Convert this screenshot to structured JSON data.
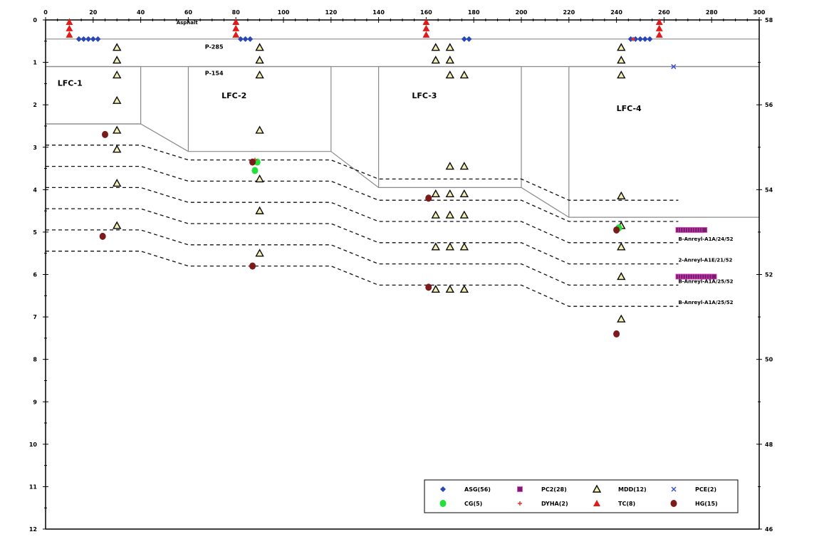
{
  "chart_data": {
    "type": "scatter",
    "title": "",
    "xlabel": "",
    "ylabel": "",
    "xlim": [
      0,
      300
    ],
    "ylim": [
      12,
      0
    ],
    "y2lim": [
      46,
      58
    ],
    "x_ticks": [
      "0",
      "20",
      "40",
      "60",
      "80",
      "100",
      "120",
      "140",
      "160",
      "180",
      "200",
      "220",
      "240",
      "260",
      "280",
      "300"
    ],
    "y_ticks": [
      "0",
      "1",
      "2",
      "3",
      "4",
      "5",
      "6",
      "7",
      "8",
      "9",
      "10",
      "11",
      "12"
    ],
    "y2_ticks": [
      "46",
      "48",
      "50",
      "52",
      "54",
      "56",
      "58"
    ],
    "grid": false,
    "legend_position": "bottom-right",
    "surface_line_depth": 0.45,
    "fill_bottom_line": [
      [
        0,
        1.1
      ],
      [
        300,
        1.1
      ]
    ],
    "layer_lines": [
      [
        [
          0,
          2.9
        ],
        [
          40,
          2.9
        ],
        [
          60,
          3.05
        ],
        [
          120,
          3.05
        ],
        [
          140,
          3.4
        ],
        [
          200,
          3.4
        ],
        [
          220,
          3.75
        ],
        [
          300,
          3.75
        ]
      ],
      [
        [
          0,
          3.4
        ],
        [
          40,
          3.4
        ],
        [
          60,
          3.55
        ],
        [
          120,
          3.55
        ],
        [
          140,
          3.9
        ],
        [
          200,
          3.9
        ],
        [
          220,
          4.25
        ],
        [
          300,
          4.25
        ]
      ],
      [
        [
          0,
          3.9
        ],
        [
          40,
          3.9
        ],
        [
          60,
          4.05
        ],
        [
          120,
          4.05
        ],
        [
          140,
          4.4
        ],
        [
          200,
          4.4
        ],
        [
          220,
          4.75
        ],
        [
          300,
          4.75
        ]
      ],
      [
        [
          0,
          4.4
        ],
        [
          40,
          4.4
        ],
        [
          60,
          4.55
        ],
        [
          120,
          4.55
        ],
        [
          140,
          4.9
        ],
        [
          200,
          4.9
        ],
        [
          220,
          5.25
        ],
        [
          300,
          5.25
        ]
      ],
      [
        [
          0,
          4.95
        ],
        [
          40,
          4.95
        ],
        [
          60,
          5.1
        ],
        [
          120,
          5.1
        ],
        [
          140,
          5.45
        ],
        [
          200,
          5.45
        ],
        [
          220,
          5.8
        ],
        [
          300,
          5.8
        ]
      ],
      [
        [
          0,
          5.5
        ],
        [
          40,
          5.5
        ],
        [
          60,
          5.65
        ],
        [
          120,
          5.65
        ],
        [
          140,
          6.0
        ],
        [
          200,
          6.0
        ],
        [
          220,
          6.35
        ],
        [
          300,
          6.35
        ]
      ],
      [
        [
          0,
          6.05
        ],
        [
          40,
          6.05
        ],
        [
          60,
          6.2
        ],
        [
          120,
          6.2
        ],
        [
          140,
          6.55
        ],
        [
          200,
          6.55
        ],
        [
          220,
          6.9
        ],
        [
          300,
          6.9
        ]
      ]
    ],
    "dashed_lines": [
      [
        [
          0,
          2.95
        ],
        [
          40,
          2.95
        ],
        [
          60,
          3.3
        ],
        [
          120,
          3.3
        ],
        [
          140,
          3.75
        ],
        [
          200,
          3.75
        ],
        [
          220,
          4.25
        ],
        [
          266,
          4.25
        ]
      ],
      [
        [
          0,
          3.45
        ],
        [
          40,
          3.45
        ],
        [
          60,
          3.8
        ],
        [
          120,
          3.8
        ],
        [
          140,
          4.25
        ],
        [
          200,
          4.25
        ],
        [
          220,
          4.75
        ],
        [
          266,
          4.75
        ]
      ],
      [
        [
          0,
          3.95
        ],
        [
          40,
          3.95
        ],
        [
          60,
          4.3
        ],
        [
          120,
          4.3
        ],
        [
          140,
          4.75
        ],
        [
          200,
          4.75
        ],
        [
          220,
          5.25
        ],
        [
          266,
          5.25
        ]
      ],
      [
        [
          0,
          4.45
        ],
        [
          40,
          4.45
        ],
        [
          60,
          4.8
        ],
        [
          120,
          4.8
        ],
        [
          140,
          5.25
        ],
        [
          200,
          5.25
        ],
        [
          220,
          5.75
        ],
        [
          266,
          5.75
        ]
      ],
      [
        [
          0,
          4.95
        ],
        [
          40,
          4.95
        ],
        [
          60,
          5.3
        ],
        [
          120,
          5.3
        ],
        [
          140,
          5.75
        ],
        [
          200,
          5.75
        ],
        [
          220,
          6.25
        ],
        [
          266,
          6.25
        ]
      ],
      [
        [
          0,
          5.45
        ],
        [
          40,
          5.45
        ],
        [
          60,
          5.8
        ],
        [
          120,
          5.8
        ],
        [
          140,
          6.25
        ],
        [
          200,
          6.25
        ],
        [
          220,
          6.75
        ],
        [
          266,
          6.75
        ]
      ]
    ],
    "lfc_boxes": [
      {
        "label": "LFC-1",
        "points": [
          [
            0,
            1.1
          ],
          [
            40,
            1.1
          ],
          [
            40,
            2.45
          ],
          [
            0,
            2.45
          ]
        ],
        "label_at": [
          5,
          1.55
        ]
      },
      {
        "label": "LFC-2",
        "points": [
          [
            60,
            1.1
          ],
          [
            120,
            1.1
          ],
          [
            120,
            3.1
          ],
          [
            60,
            3.1
          ]
        ],
        "label_at": [
          74,
          1.85
        ]
      },
      {
        "label": "LFC-3",
        "points": [
          [
            140,
            1.1
          ],
          [
            200,
            1.1
          ],
          [
            200,
            3.95
          ],
          [
            140,
            3.95
          ]
        ],
        "label_at": [
          154,
          1.85
        ]
      },
      {
        "label": "LFC-4",
        "points": [
          [
            220,
            1.1
          ],
          [
            300,
            1.1
          ],
          [
            300,
            4.65
          ],
          [
            220,
            4.65
          ]
        ],
        "label_at": [
          240,
          2.15
        ]
      }
    ],
    "text_annotations": [
      {
        "text": "Asphalt",
        "x": 55,
        "y": 0.1,
        "size": 7
      },
      {
        "text": "P-285",
        "x": 67,
        "y": 0.68,
        "size": 8
      },
      {
        "text": "P-154",
        "x": 67,
        "y": 1.3,
        "size": 8
      },
      {
        "text": "B-Anreyl-A1A/24/52",
        "x": 266,
        "y": 5.2,
        "size": 7
      },
      {
        "text": "2-Anreyl-A1E/21/52",
        "x": 266,
        "y": 5.7,
        "size": 7
      },
      {
        "text": "B-Anreyl-A1A/25/52",
        "x": 266,
        "y": 6.2,
        "size": 7
      },
      {
        "text": "B-Anreyl-A1A/25/52",
        "x": 266,
        "y": 6.7,
        "size": 7
      }
    ],
    "legend": [
      {
        "label": "ASG(56)",
        "marker": "diamond",
        "color": "#2a46b5"
      },
      {
        "label": "PC2(28)",
        "marker": "square",
        "color": "#7a1f67"
      },
      {
        "label": "MDD(12)",
        "marker": "triangle-open",
        "color": "#0a0a0a"
      },
      {
        "label": "PCE(2)",
        "marker": "x",
        "color": "#3a4fd8"
      },
      {
        "label": "CG(5)",
        "marker": "circle",
        "color": "#21e03a"
      },
      {
        "label": "DYHA(2)",
        "marker": "plus",
        "color": "#e6322b"
      },
      {
        "label": "TC(8)",
        "marker": "triangle-filled",
        "color": "#e21a1a"
      },
      {
        "label": "HG(15)",
        "marker": "circle",
        "color": "#7d1b1b"
      }
    ],
    "series": [
      {
        "name": "ASG(56)",
        "marker": "diamond",
        "color": "#2a46b5",
        "points": [
          [
            14,
            0.45
          ],
          [
            16,
            0.45
          ],
          [
            18,
            0.45
          ],
          [
            20,
            0.45
          ],
          [
            22,
            0.45
          ],
          [
            82,
            0.45
          ],
          [
            84,
            0.45
          ],
          [
            86,
            0.45
          ],
          [
            176,
            0.45
          ],
          [
            178,
            0.45
          ],
          [
            246,
            0.45
          ],
          [
            248,
            0.45
          ],
          [
            250,
            0.45
          ],
          [
            252,
            0.45
          ],
          [
            254,
            0.45
          ]
        ]
      },
      {
        "name": "PC2(28)",
        "marker": "square",
        "color": "#7a1f67",
        "points": [
          [
            266,
            4.95
          ],
          [
            267,
            4.95
          ],
          [
            268,
            4.95
          ],
          [
            269,
            4.95
          ],
          [
            270,
            4.95
          ],
          [
            271,
            4.95
          ],
          [
            272,
            4.95
          ],
          [
            273,
            4.95
          ],
          [
            274,
            4.95
          ],
          [
            275,
            4.95
          ],
          [
            276,
            4.95
          ],
          [
            277,
            4.95
          ],
          [
            266,
            6.05
          ],
          [
            267,
            6.05
          ],
          [
            268,
            6.05
          ],
          [
            269,
            6.05
          ],
          [
            270,
            6.05
          ],
          [
            271,
            6.05
          ],
          [
            272,
            6.05
          ],
          [
            273,
            6.05
          ],
          [
            274,
            6.05
          ],
          [
            275,
            6.05
          ],
          [
            276,
            6.05
          ],
          [
            277,
            6.05
          ],
          [
            278,
            6.05
          ],
          [
            279,
            6.05
          ],
          [
            280,
            6.05
          ],
          [
            281,
            6.05
          ]
        ]
      },
      {
        "name": "MDD(12)",
        "marker": "triangle-open",
        "color": "#0a0a0a",
        "points": [
          [
            30,
            0.65
          ],
          [
            30,
            0.95
          ],
          [
            30,
            1.3
          ],
          [
            30,
            1.9
          ],
          [
            30,
            2.6
          ],
          [
            30,
            3.05
          ],
          [
            30,
            3.85
          ],
          [
            30,
            4.85
          ],
          [
            90,
            0.65
          ],
          [
            90,
            0.95
          ],
          [
            90,
            1.3
          ],
          [
            90,
            2.6
          ],
          [
            90,
            3.75
          ],
          [
            90,
            4.5
          ],
          [
            90,
            5.5
          ],
          [
            164,
            0.65
          ],
          [
            170,
            0.65
          ],
          [
            164,
            0.95
          ],
          [
            170,
            0.95
          ],
          [
            170,
            1.3
          ],
          [
            176,
            1.3
          ],
          [
            170,
            3.45
          ],
          [
            176,
            3.45
          ],
          [
            164,
            4.1
          ],
          [
            170,
            4.1
          ],
          [
            176,
            4.1
          ],
          [
            164,
            4.6
          ],
          [
            170,
            4.6
          ],
          [
            176,
            4.6
          ],
          [
            164,
            5.35
          ],
          [
            170,
            5.35
          ],
          [
            176,
            5.35
          ],
          [
            164,
            6.35
          ],
          [
            170,
            6.35
          ],
          [
            176,
            6.35
          ],
          [
            242,
            0.65
          ],
          [
            242,
            0.95
          ],
          [
            242,
            1.3
          ],
          [
            242,
            4.15
          ],
          [
            242,
            4.85
          ],
          [
            242,
            5.35
          ],
          [
            242,
            6.05
          ],
          [
            242,
            7.05
          ]
        ]
      },
      {
        "name": "PCE(2)",
        "marker": "x",
        "color": "#3a4fd8",
        "points": [
          [
            264,
            1.1
          ]
        ]
      },
      {
        "name": "CG(5)",
        "marker": "circle",
        "color": "#21e03a",
        "points": [
          [
            89,
            3.35
          ],
          [
            88,
            3.55
          ],
          [
            241,
            4.9
          ]
        ]
      },
      {
        "name": "DYHA(2)",
        "marker": "plus",
        "color": "#e6322b",
        "points": [
          [
            247,
            0.45
          ],
          [
            88,
            3.3
          ]
        ]
      },
      {
        "name": "TC(8)",
        "marker": "triangle-filled",
        "color": "#e21a1a",
        "points": [
          [
            10,
            0.05
          ],
          [
            10,
            0.2
          ],
          [
            10,
            0.35
          ],
          [
            80,
            0.05
          ],
          [
            80,
            0.2
          ],
          [
            80,
            0.35
          ],
          [
            160,
            0.05
          ],
          [
            160,
            0.2
          ],
          [
            160,
            0.35
          ],
          [
            258,
            0.05
          ],
          [
            258,
            0.2
          ],
          [
            258,
            0.35
          ]
        ]
      },
      {
        "name": "HG(15)",
        "marker": "circle",
        "color": "#7d1b1b",
        "points": [
          [
            25,
            2.7
          ],
          [
            24,
            5.1
          ],
          [
            87,
            3.35
          ],
          [
            87,
            5.8
          ],
          [
            161,
            4.2
          ],
          [
            161,
            6.3
          ],
          [
            240,
            7.4
          ],
          [
            240,
            4.95
          ]
        ]
      }
    ]
  }
}
